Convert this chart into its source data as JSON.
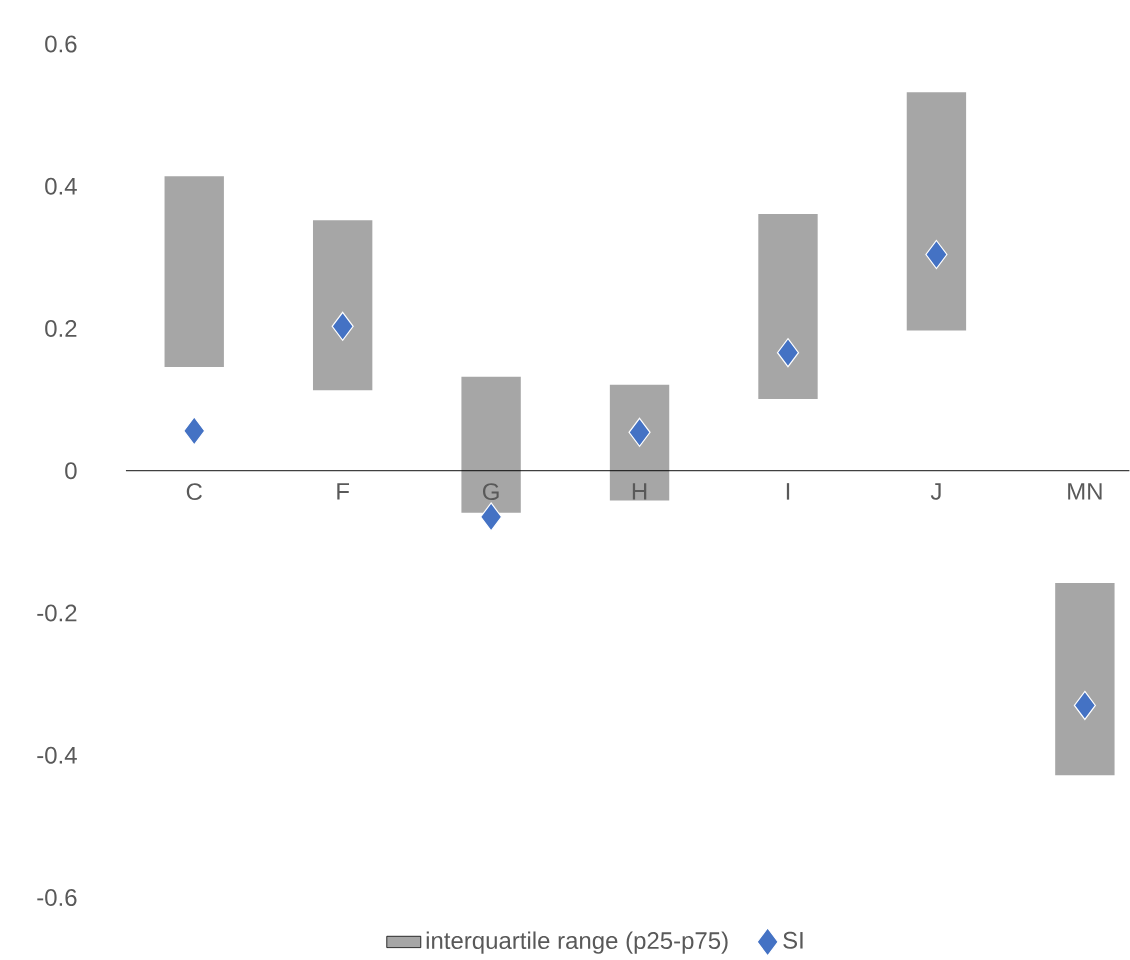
{
  "chart_data": {
    "type": "bar",
    "categories": [
      "C",
      "F",
      "G",
      "H",
      "I",
      "J",
      "MN"
    ],
    "ylim": [
      -0.6,
      0.6
    ],
    "yticks": [
      -0.6,
      -0.4,
      -0.2,
      0,
      0.2,
      0.4,
      0.6
    ],
    "grid": false,
    "legend": "bottom",
    "series": [
      {
        "name": "interquartile range (p25-p75)",
        "color": "#a6a6a6",
        "base": [
          0.146,
          0.113,
          -0.059,
          -0.042,
          0.101,
          0.197,
          -0.428
        ],
        "values": [
          0.268,
          0.239,
          0.191,
          0.163,
          0.26,
          0.335,
          0.27
        ]
      },
      {
        "name": "SI",
        "type": "scatter",
        "color": "#4472c4",
        "marker": "diamond",
        "x": [
          "C",
          "F",
          "G",
          "H",
          "I",
          "J",
          "MN"
        ],
        "values": [
          0.056,
          0.203,
          -0.065,
          0.054,
          0.166,
          0.304,
          -0.33
        ]
      }
    ]
  }
}
